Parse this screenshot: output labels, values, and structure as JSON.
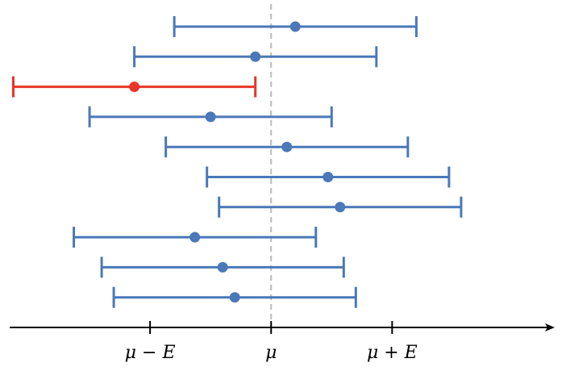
{
  "chart_data": {
    "type": "errorbar",
    "values": [
      0.2,
      -0.13,
      -1.13,
      -0.5,
      0.13,
      0.47,
      0.57,
      -0.63,
      -0.4,
      -0.3
    ],
    "errors": [
      1,
      1,
      1,
      1,
      1,
      1,
      1,
      1,
      1,
      1
    ],
    "colors": [
      "#4a78b8",
      "#4a78b8",
      "#e8352a",
      "#4a78b8",
      "#4a78b8",
      "#4a78b8",
      "#4a78b8",
      "#4a78b8",
      "#4a78b8",
      "#4a78b8"
    ],
    "xlim": [
      -2.16,
      2.33
    ],
    "xticks": [
      {
        "value": -1,
        "label": "μ − E"
      },
      {
        "value": 0,
        "label": "μ"
      },
      {
        "value": 1,
        "label": "μ + E"
      }
    ],
    "reference_line": 0
  }
}
